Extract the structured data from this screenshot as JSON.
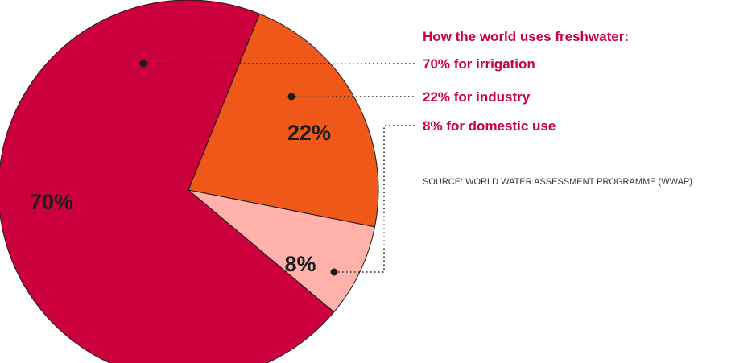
{
  "chart_data": {
    "type": "pie",
    "title": "How the world uses freshwater:",
    "slices": [
      {
        "label": "irrigation",
        "value": 70,
        "data_label": "70%",
        "legend": "70% for irrigation",
        "color": "#cc003d"
      },
      {
        "label": "industry",
        "value": 22,
        "data_label": "22%",
        "legend": "22% for industry",
        "color": "#f05819"
      },
      {
        "label": "domestic use",
        "value": 8,
        "data_label": "8%",
        "legend": "8% for domestic use",
        "color": "#ffb1aa"
      }
    ],
    "legend_color": "#cc003d",
    "source": "SOURCE: WORLD WATER ASSESSMENT PROGRAMME (WWAP)"
  }
}
